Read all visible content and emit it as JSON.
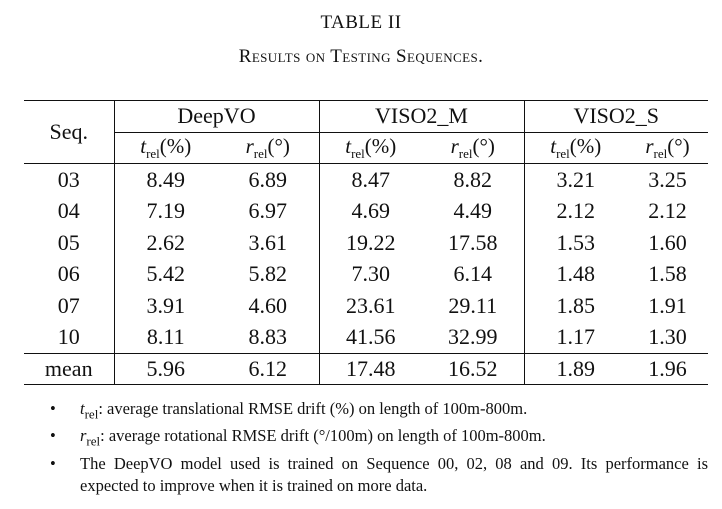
{
  "caption": {
    "label": "TABLE II",
    "title": "Results on Testing Sequences."
  },
  "table": {
    "seq_header": "Seq.",
    "groups": [
      "DeepVO",
      "VISO2_M",
      "VISO2_S"
    ],
    "subheaders": [
      {
        "var": "t",
        "sub": "rel",
        "unit": "(%)"
      },
      {
        "var": "r",
        "sub": "rel",
        "unit": "(°)"
      }
    ],
    "rows": [
      {
        "seq": "03",
        "values": [
          "8.49",
          "6.89",
          "8.47",
          "8.82",
          "3.21",
          "3.25"
        ]
      },
      {
        "seq": "04",
        "values": [
          "7.19",
          "6.97",
          "4.69",
          "4.49",
          "2.12",
          "2.12"
        ]
      },
      {
        "seq": "05",
        "values": [
          "2.62",
          "3.61",
          "19.22",
          "17.58",
          "1.53",
          "1.60"
        ]
      },
      {
        "seq": "06",
        "values": [
          "5.42",
          "5.82",
          "7.30",
          "6.14",
          "1.48",
          "1.58"
        ]
      },
      {
        "seq": "07",
        "values": [
          "3.91",
          "4.60",
          "23.61",
          "29.11",
          "1.85",
          "1.91"
        ]
      },
      {
        "seq": "10",
        "values": [
          "8.11",
          "8.83",
          "41.56",
          "32.99",
          "1.17",
          "1.30"
        ]
      }
    ],
    "mean": {
      "seq": "mean",
      "values": [
        "5.96",
        "6.12",
        "17.48",
        "16.52",
        "1.89",
        "1.96"
      ]
    }
  },
  "notes": {
    "bullet": "•",
    "n1_var": "t",
    "n1_sub": "rel",
    "n1_text": ": average translational RMSE drift (%) on length of 100m-800m.",
    "n2_var": "r",
    "n2_sub": "rel",
    "n2_text": ": average rotational RMSE drift (°/100m) on length of 100m-800m.",
    "n3_text": "The DeepVO model used is trained on Sequence 00, 02, 08 and 09. Its performance is expected to improve when it is trained on more data."
  }
}
